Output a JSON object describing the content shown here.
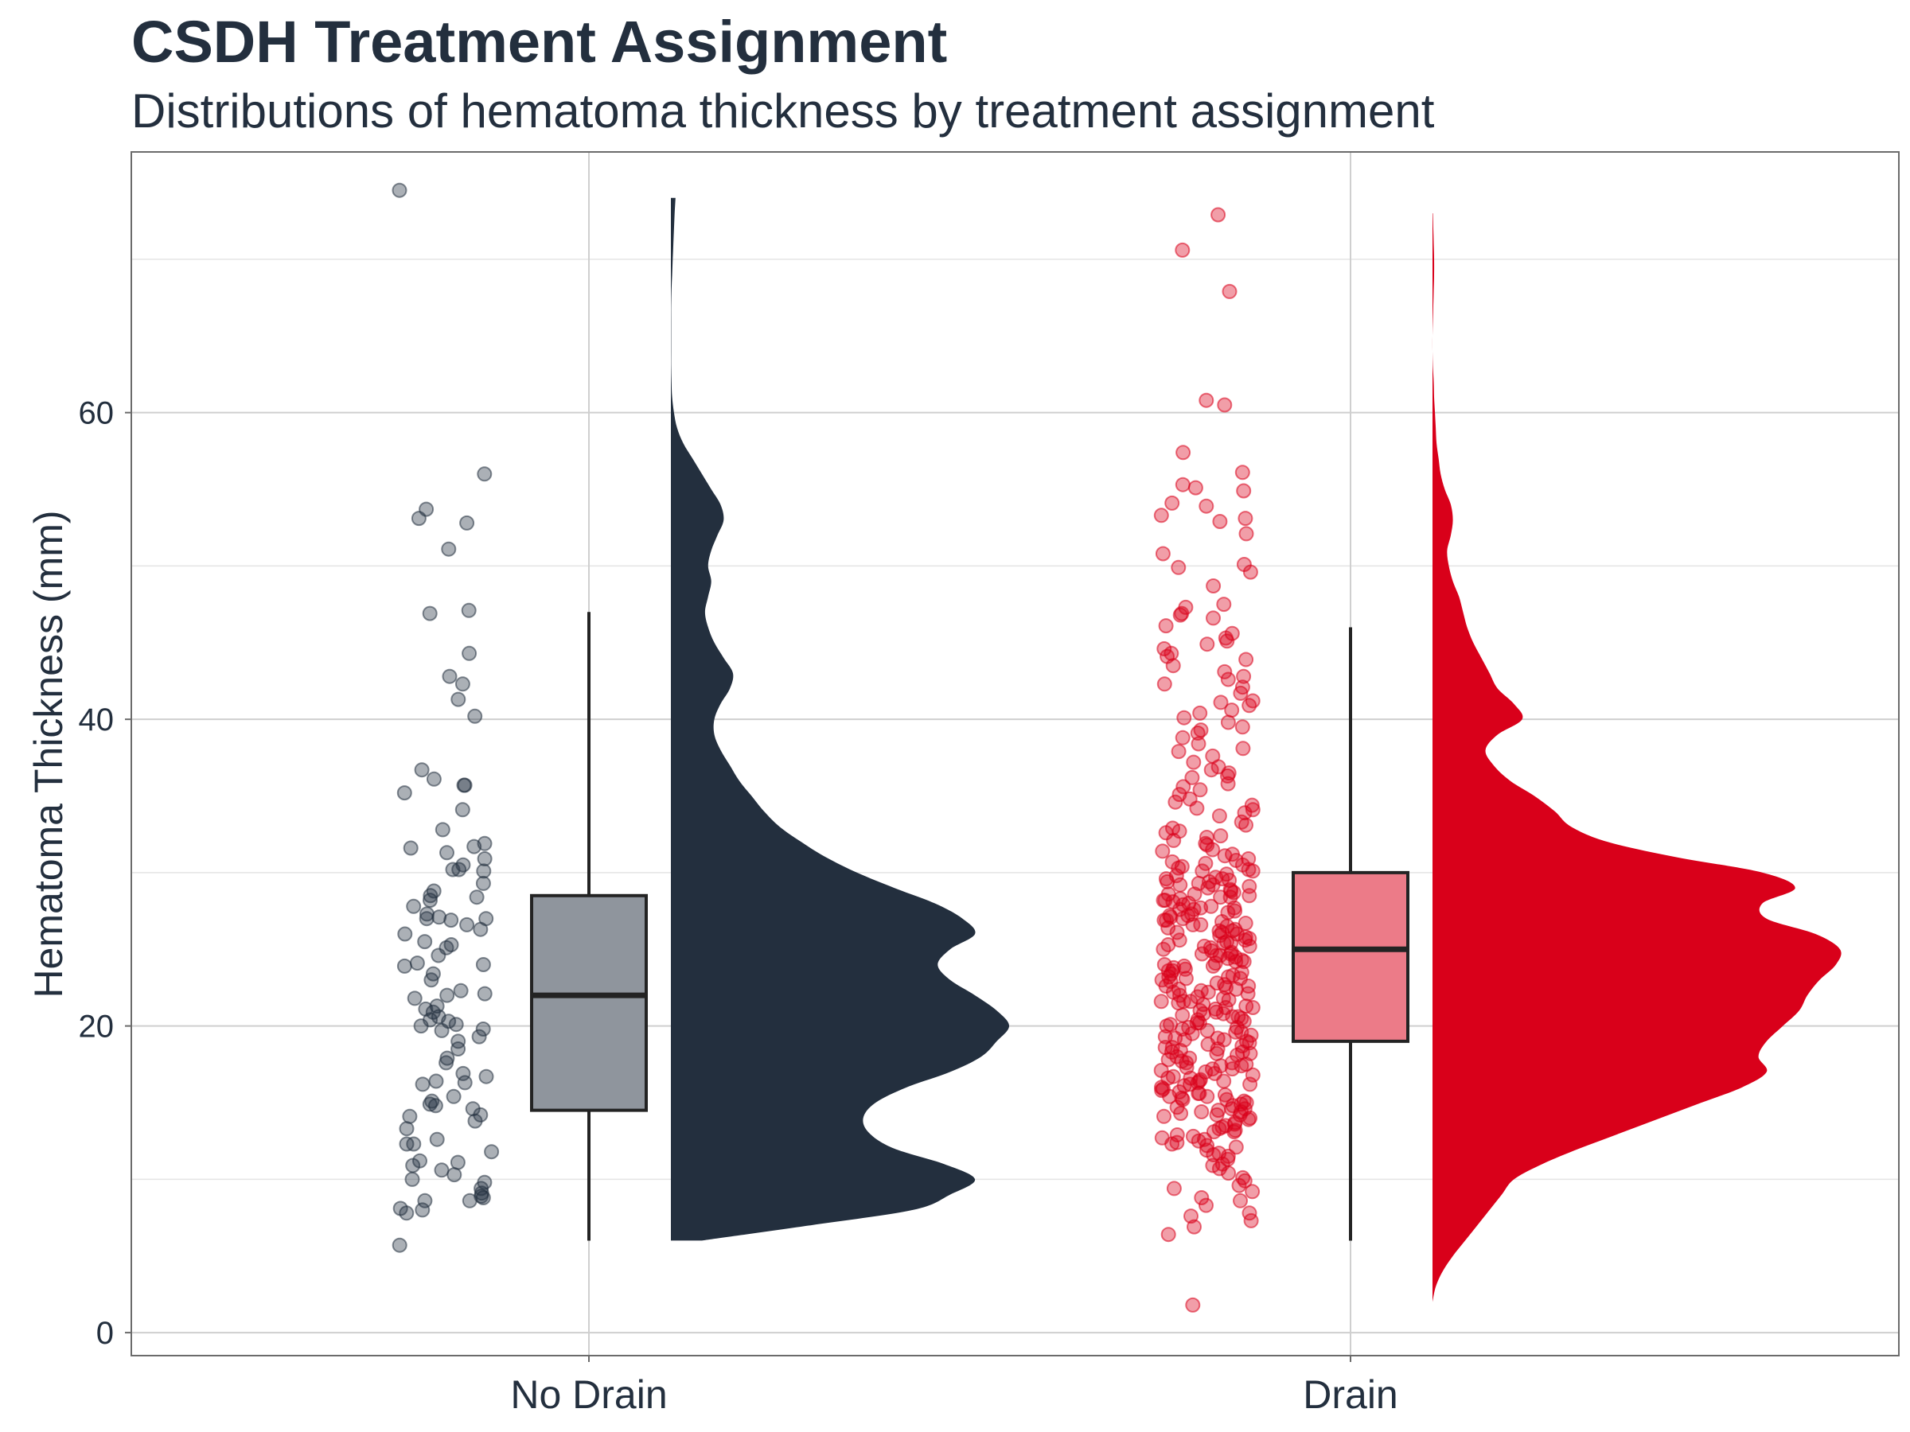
{
  "chart_data": {
    "type": "raincloud",
    "title": "CSDH Treatment Assignment",
    "subtitle": "Distributions of hematoma thickness by treatment assignment",
    "xlabel": "",
    "ylabel": "Hematoma Thickness (mm)",
    "ylim": [
      -1.5,
      77
    ],
    "y_ticks": [
      0,
      20,
      40,
      60
    ],
    "y_tick_labels": [
      "0",
      "20",
      "40",
      "60"
    ],
    "grid": true,
    "legend": "none",
    "categories": [
      "No Drain",
      "Drain"
    ],
    "series": [
      {
        "category": "No Drain",
        "fill_color": "#232F3E",
        "box_color": "#8F959D",
        "box": {
          "min": 6,
          "q1": 14.5,
          "median": 22,
          "q3": 28.5,
          "max": 47
        },
        "points": [
          74.5,
          56,
          53.7,
          53.1,
          52.8,
          51.1,
          46.9,
          47.1,
          44.3,
          42.8,
          42.3,
          41.3,
          40.2,
          36.7,
          36.1,
          35.7,
          35.7,
          35.2,
          34.1,
          32.8,
          31.9,
          31.7,
          31.6,
          31.3,
          30.9,
          30.5,
          30.2,
          30.2,
          30.1,
          29.3,
          28.8,
          28.5,
          28.4,
          28.2,
          27.8,
          27.3,
          27.1,
          27,
          27,
          26.9,
          26.6,
          26.3,
          26,
          25.5,
          25.3,
          25.1,
          24.6,
          24.1,
          24,
          23.9,
          23.4,
          23,
          22.3,
          22.1,
          22,
          21.8,
          21.3,
          21.1,
          20.9,
          20.6,
          20.4,
          20.3,
          20.1,
          20,
          19.8,
          19.7,
          19.3,
          19,
          18.5,
          17.9,
          17.6,
          16.9,
          16.7,
          16.4,
          16.3,
          16.2,
          15.4,
          15.1,
          14.9,
          14.8,
          14.6,
          14.2,
          14.1,
          13.8,
          13.3,
          12.6,
          12.3,
          12.3,
          11.8,
          11.2,
          11.1,
          10.9,
          10.6,
          10.3,
          10,
          9.8,
          9.4,
          9.1,
          8.9,
          8.8,
          8.6,
          8.6,
          8.1,
          8,
          7.8,
          5.7
        ],
        "density": {
          "y": [
            6,
            7,
            8,
            9,
            10,
            11,
            12,
            13,
            14,
            15,
            16,
            17,
            18,
            19,
            20,
            21,
            22,
            23,
            24,
            25,
            26,
            27,
            28,
            29,
            30,
            31,
            32,
            33,
            34,
            35,
            36,
            37,
            38,
            39,
            40,
            41,
            42,
            43,
            44,
            45,
            46,
            47,
            48,
            49,
            50,
            51,
            52,
            53,
            54,
            55,
            56,
            57,
            58,
            59,
            60,
            61,
            62,
            63,
            64,
            65,
            66,
            67,
            68,
            69,
            70,
            71,
            72,
            73,
            74
          ],
          "d": [
            0.1,
            0.45,
            0.78,
            0.9,
            0.98,
            0.88,
            0.72,
            0.64,
            0.62,
            0.66,
            0.76,
            0.9,
            1.0,
            1.05,
            1.09,
            1.05,
            0.98,
            0.9,
            0.86,
            0.9,
            0.98,
            0.94,
            0.85,
            0.72,
            0.6,
            0.5,
            0.42,
            0.35,
            0.3,
            0.26,
            0.22,
            0.19,
            0.16,
            0.14,
            0.14,
            0.16,
            0.19,
            0.2,
            0.17,
            0.14,
            0.12,
            0.11,
            0.12,
            0.13,
            0.12,
            0.13,
            0.15,
            0.17,
            0.16,
            0.13,
            0.1,
            0.07,
            0.04,
            0.02,
            0.01,
            0.004,
            0.002,
            0.001,
            0.001,
            0.001,
            0.001,
            0.001,
            0.002,
            0.004,
            0.006,
            0.008,
            0.01,
            0.012,
            0.015
          ]
        }
      },
      {
        "category": "Drain",
        "fill_color": "#D9001A",
        "box_color": "#EC7B88",
        "box": {
          "min": 6,
          "q1": 19,
          "median": 25,
          "q3": 30,
          "max": 46
        },
        "points": [
          72.9,
          70.6,
          67.9,
          60.8,
          60.5,
          57.4,
          56.1,
          55.3,
          55.1,
          54.9,
          54.1,
          53.9,
          53.3,
          53.1,
          52.9,
          52.1,
          50.8,
          50.1,
          49.9,
          49.6,
          48.7,
          47.5,
          47.3,
          46.9,
          46.8,
          46.6,
          46.1,
          45.6,
          45.3,
          45.1,
          44.9,
          44.6,
          44.3,
          43.9,
          43.5,
          43.1,
          42.8,
          42.3,
          42.1,
          41.7,
          41.2,
          40.9,
          40.6,
          40.4,
          40.1,
          39.8,
          39.5,
          39.1,
          38.8,
          38.4,
          38.1,
          37.6,
          37.2,
          36.9,
          36.5,
          36.2,
          35.8,
          35.4,
          35.1,
          34.8,
          34.4,
          34.1,
          33.7,
          33.3,
          33.1,
          32.7,
          32.4,
          32.1,
          31.8,
          31.5,
          31.2,
          30.9,
          30.6,
          30.3,
          30.1,
          29.8,
          29.6,
          29.4,
          29.2,
          29,
          28.8,
          28.6,
          28.4,
          28.2,
          28,
          27.8,
          27.6,
          27.4,
          27.2,
          27,
          26.8,
          26.6,
          26.4,
          26.2,
          26,
          25.8,
          25.6,
          25.4,
          25.2,
          25,
          24.8,
          24.6,
          24.4,
          24.2,
          24,
          23.8,
          23.6,
          23.4,
          23.2,
          23,
          22.8,
          22.6,
          22.4,
          22.2,
          22,
          21.8,
          21.6,
          21.4,
          21.2,
          21,
          20.8,
          20.6,
          20.4,
          20.2,
          20,
          19.8,
          19.6,
          19.4,
          19.2,
          19,
          18.8,
          18.6,
          18.4,
          18.2,
          18,
          17.8,
          17.6,
          17.4,
          17.2,
          17,
          16.8,
          16.6,
          16.4,
          16.2,
          16,
          15.8,
          15.6,
          15.4,
          15.2,
          15,
          14.8,
          14.6,
          14.4,
          14.2,
          14,
          13.7,
          13.4,
          13.1,
          12.8,
          12.5,
          12.2,
          11.9,
          11.6,
          11.3,
          11,
          10.7,
          10.4,
          10.1,
          9.6,
          9.2,
          8.8,
          8.3,
          7.8,
          7.3,
          6.9,
          6.4,
          1.8,
          30.5,
          29.9,
          29.5,
          29.1,
          28.7,
          28.3,
          27.9,
          27.5,
          27.1,
          26.7,
          26.3,
          25.9,
          25.5,
          25.1,
          24.7,
          24.3,
          23.9,
          23.5,
          23.1,
          22.7,
          22.3,
          21.9,
          21.5,
          21.1,
          20.7,
          20.3,
          19.9,
          19.5,
          19.1,
          18.7,
          18.3,
          17.9,
          17.5,
          17.1,
          16.7,
          16.3,
          15.9,
          15.5,
          15.1,
          14.7,
          14.3,
          13.9,
          13.5,
          12.9,
          12.3,
          11.7,
          31.4,
          30.8,
          29.7,
          28.9,
          28.1,
          27.3,
          26.5,
          25.7,
          24.9,
          24.1,
          23.3,
          22.5,
          21.7,
          20.9,
          20.1,
          19.3,
          18.5,
          17.7,
          16.9,
          16.1,
          15.3,
          14.5,
          13.3,
          12.1,
          35.6,
          33.9,
          32.6,
          31.1,
          29.3,
          27.7,
          26.1,
          24.5,
          22.9,
          21.3,
          19.7,
          18.1,
          16.5,
          14.9,
          13.1,
          11.5,
          9.9,
          8.6,
          37.9,
          36.3,
          34.6,
          32.9,
          30.2,
          28.5,
          26.9,
          25.3,
          23.7,
          22.1,
          20.5,
          18.9,
          17.3,
          15.7,
          14.1,
          12.6,
          10.9,
          9.4,
          7.6,
          31.9,
          30.4,
          29.6,
          28.2,
          27.2,
          26.2,
          25.2,
          24.2,
          23.2,
          22.2,
          21.2,
          20.2,
          19.2,
          18.2,
          17.2,
          16.2,
          15.2,
          14.2,
          13.2,
          12.4,
          44.1,
          42.6,
          41.1,
          39.3,
          36.7,
          34.2,
          32.3,
          30.7,
          29.4,
          28.6,
          27.6,
          26.6,
          25.6,
          24.6,
          23.6,
          22.6,
          21.6,
          20.6,
          19.6,
          18.6,
          17.6,
          16.6,
          15.6,
          14.6,
          13.6,
          12.7,
          30.1,
          29.2,
          28.4,
          27.7,
          26.9,
          26.1,
          25.4,
          24.7,
          23.9,
          23.1,
          22.4,
          21.6,
          20.8,
          19.9,
          19.1,
          18.3,
          17.4,
          16.4,
          15.4,
          14.4
        ],
        "density": {
          "y": [
            2,
            3,
            4,
            5,
            6,
            7,
            8,
            9,
            10,
            11,
            12,
            13,
            14,
            15,
            16,
            17,
            18,
            19,
            20,
            21,
            22,
            23,
            24,
            25,
            26,
            27,
            28,
            29,
            30,
            31,
            32,
            33,
            34,
            35,
            36,
            37,
            38,
            39,
            40,
            41,
            42,
            43,
            44,
            45,
            46,
            47,
            48,
            49,
            50,
            51,
            52,
            53,
            54,
            55,
            56,
            57,
            58,
            59,
            60,
            61,
            62,
            63,
            64,
            65,
            66,
            67,
            68,
            69,
            70,
            71,
            72,
            73
          ],
          "d": [
            0.0,
            0.008,
            0.025,
            0.05,
            0.08,
            0.11,
            0.14,
            0.17,
            0.2,
            0.27,
            0.36,
            0.46,
            0.56,
            0.66,
            0.76,
            0.82,
            0.8,
            0.82,
            0.86,
            0.9,
            0.92,
            0.95,
            0.99,
            1.0,
            0.94,
            0.82,
            0.81,
            0.89,
            0.81,
            0.6,
            0.43,
            0.34,
            0.3,
            0.25,
            0.19,
            0.15,
            0.13,
            0.16,
            0.22,
            0.2,
            0.16,
            0.14,
            0.12,
            0.1,
            0.085,
            0.075,
            0.065,
            0.05,
            0.04,
            0.036,
            0.045,
            0.05,
            0.045,
            0.03,
            0.02,
            0.015,
            0.01,
            0.008,
            0.006,
            0.004,
            0.003,
            0.001,
            0.0,
            0.0,
            0.001,
            0.002,
            0.003,
            0.004,
            0.004,
            0.003,
            0.002,
            0.001
          ]
        }
      }
    ]
  }
}
